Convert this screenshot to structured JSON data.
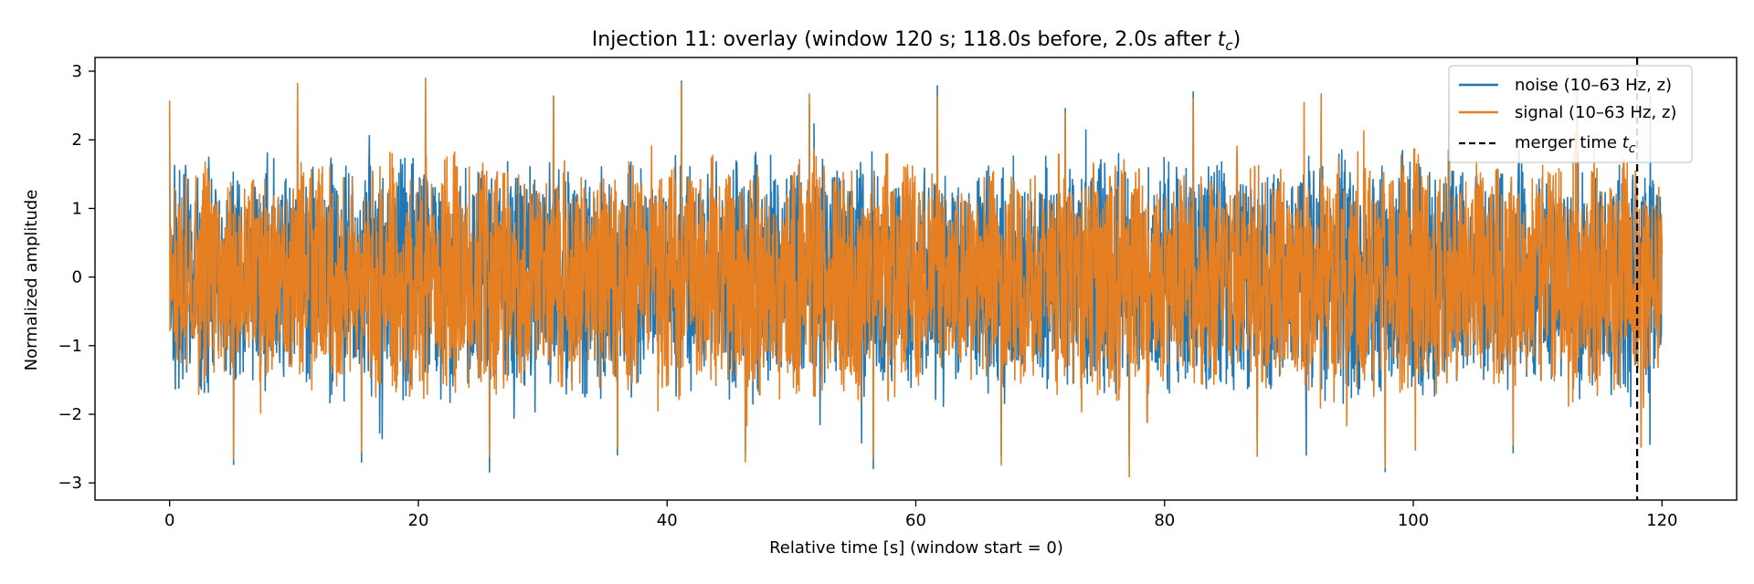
{
  "chart_data": {
    "type": "line",
    "title": "Injection 11: overlay (window 120 s; 118.0s before, 2.0s after ",
    "title_math": "t",
    "title_math_sub": "c",
    "title_end": ")",
    "xlabel": "Relative time [s] (window start = 0)",
    "ylabel": "Normalized amplitude",
    "xlim": [
      -6,
      126
    ],
    "ylim": [
      -3.25,
      3.2
    ],
    "x_ticks": [
      0,
      20,
      40,
      60,
      80,
      100,
      120
    ],
    "x_tick_labels": [
      "0",
      "20",
      "40",
      "60",
      "80",
      "100",
      "120"
    ],
    "y_ticks": [
      3,
      2,
      1,
      0,
      -1,
      -2,
      -3
    ],
    "y_tick_labels": [
      "3",
      "2",
      "1",
      "0",
      "−1",
      "−2",
      "−3"
    ],
    "x_range": [
      0,
      120
    ],
    "series": [
      {
        "name": "noise (10–63 Hz, z)",
        "color": "#1f77b4",
        "amplitude_range": [
          -2.93,
          2.9
        ]
      },
      {
        "name": "signal (10–63 Hz, z)",
        "color": "#e57f22",
        "amplitude_range": [
          -2.92,
          2.9
        ]
      }
    ],
    "merger_line": {
      "x": 118.0,
      "color": "#000000",
      "style": "dashed",
      "label": "merger time ",
      "label_math": "t",
      "label_math_sub": "c"
    },
    "legend_position": "top-right",
    "grid": false
  }
}
